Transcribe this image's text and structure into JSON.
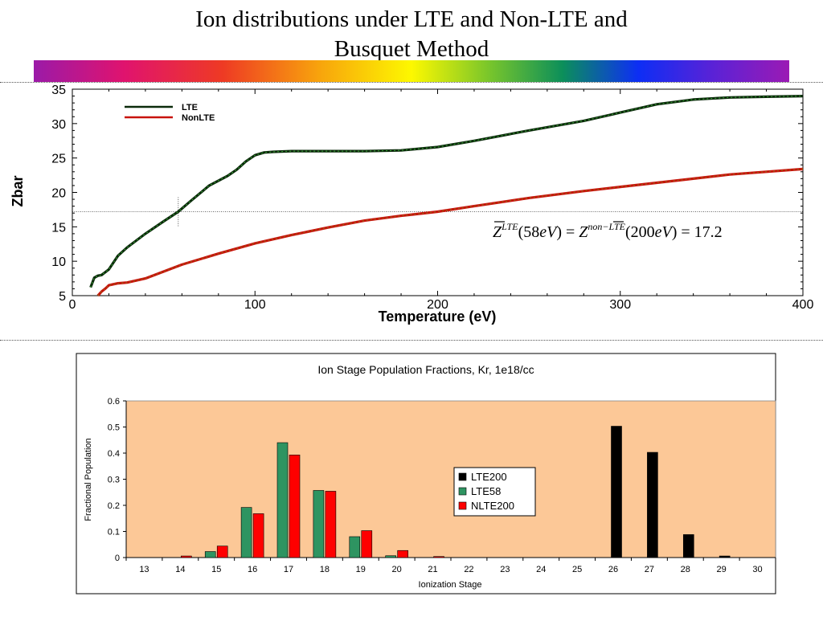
{
  "slide": {
    "title_line1": "Ion distributions under LTE and Non-LTE and",
    "title_line2": "Busquet Method"
  },
  "chart_data": [
    {
      "type": "line",
      "xlabel": "Temperature (eV)",
      "ylabel": "Zbar",
      "xlim": [
        0,
        400
      ],
      "ylim": [
        5,
        35
      ],
      "xticks": [
        0,
        100,
        200,
        300,
        400
      ],
      "yticks": [
        5,
        10,
        15,
        20,
        25,
        30,
        35
      ],
      "legend_position": "top-left",
      "series": [
        {
          "name": "LTE",
          "color": "#0a2a0a",
          "x": [
            10,
            12,
            14,
            16,
            20,
            25,
            30,
            40,
            50,
            58,
            65,
            75,
            85,
            90,
            95,
            100,
            105,
            110,
            120,
            140,
            160,
            180,
            200,
            220,
            250,
            280,
            300,
            320,
            340,
            360,
            380,
            400
          ],
          "y": [
            6.2,
            7.6,
            7.9,
            8.0,
            8.8,
            10.8,
            12.0,
            14.0,
            15.8,
            17.2,
            18.8,
            21.0,
            22.4,
            23.3,
            24.5,
            25.4,
            25.8,
            25.9,
            26.0,
            26.0,
            26.0,
            26.1,
            26.6,
            27.5,
            29.0,
            30.4,
            31.6,
            32.8,
            33.5,
            33.8,
            33.9,
            34.0
          ]
        },
        {
          "name": "NonLTE",
          "color": "#c8120a",
          "x": [
            14,
            16,
            18,
            20,
            25,
            30,
            40,
            50,
            60,
            80,
            100,
            120,
            140,
            160,
            180,
            200,
            220,
            250,
            280,
            300,
            320,
            340,
            360,
            380,
            400
          ],
          "y": [
            5.0,
            5.6,
            6.0,
            6.5,
            6.8,
            6.9,
            7.5,
            8.5,
            9.5,
            11.1,
            12.6,
            13.8,
            14.9,
            15.9,
            16.6,
            17.2,
            18.0,
            19.2,
            20.2,
            20.8,
            21.4,
            22.0,
            22.6,
            23.0,
            23.4
          ]
        }
      ],
      "annotations": {
        "equation": "Z̄ LTE (58eV) = Z̄ non−LTE (200eV) = 17.2",
        "marker_x": 58,
        "marker_y": 17.2
      }
    },
    {
      "type": "bar",
      "title": "Ion Stage Population Fractions, Kr, 1e18/cc",
      "xlabel": "Ionization Stage",
      "ylabel": "Fractional Population",
      "ylim": [
        0,
        0.6
      ],
      "yticks": [
        "0",
        "0.1",
        "0.2",
        "0.3",
        "0.4",
        "0.5",
        "0.6"
      ],
      "categories": [
        "13",
        "14",
        "15",
        "16",
        "17",
        "18",
        "19",
        "20",
        "21",
        "22",
        "23",
        "24",
        "25",
        "26",
        "27",
        "28",
        "29",
        "30"
      ],
      "background": "#fcc897",
      "legend_position": "center-right",
      "series": [
        {
          "name": "LTE200",
          "color": "#000000",
          "values": [
            0,
            0,
            0,
            0,
            0,
            0,
            0,
            0,
            0,
            0,
            0,
            0,
            0,
            0.503,
            0.403,
            0.088,
            0.006,
            0
          ]
        },
        {
          "name": "LTE58",
          "color": "#2e9461",
          "values": [
            0,
            0,
            0.023,
            0.192,
            0.44,
            0.257,
            0.08,
            0.007,
            0,
            0,
            0,
            0,
            0,
            0,
            0,
            0,
            0,
            0
          ]
        },
        {
          "name": "NLTE200",
          "color": "#ff0000",
          "values": [
            0,
            0.006,
            0.044,
            0.168,
            0.393,
            0.254,
            0.103,
            0.027,
            0.004,
            0,
            0,
            0,
            0,
            0,
            0,
            0,
            0,
            0
          ]
        }
      ]
    }
  ]
}
